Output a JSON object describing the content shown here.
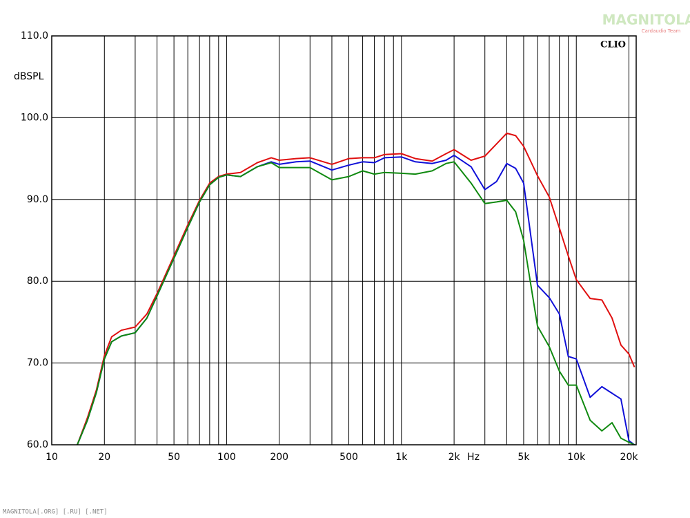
{
  "chart_data": {
    "type": "line",
    "y_label": "dBSPL",
    "x_unit": "Hz",
    "brand": "CLIO",
    "watermark": "MAGNITOLA",
    "watermark_sub": "Cardaudio Team",
    "footer": "MAGNITOLA[.ORG] [.RU] [.NET]",
    "log_x": true,
    "grid": true,
    "xlim": [
      10,
      22000
    ],
    "ylim": [
      60,
      110
    ],
    "xticks": [
      10,
      20,
      50,
      100,
      200,
      500,
      {
        "value": 1000,
        "label": "1k"
      },
      {
        "value": 2000,
        "label": "2k"
      },
      {
        "value": 5000,
        "label": "5k"
      },
      {
        "value": 10000,
        "label": "10k"
      },
      {
        "value": 20000,
        "label": "20k"
      }
    ],
    "xminor": [
      30,
      40,
      60,
      70,
      80,
      90,
      300,
      400,
      600,
      700,
      800,
      900,
      3000,
      4000,
      6000,
      7000,
      8000,
      9000
    ],
    "yticks": [
      {
        "value": 60,
        "label": "60.0"
      },
      {
        "value": 70,
        "label": "70.0"
      },
      {
        "value": 80,
        "label": "80.0"
      },
      {
        "value": 90,
        "label": "90.0"
      },
      {
        "value": 100,
        "label": "100.0"
      },
      {
        "value": 110,
        "label": "110.0"
      }
    ],
    "x": [
      14,
      16,
      18,
      20,
      22,
      25,
      30,
      35,
      40,
      50,
      60,
      70,
      80,
      90,
      100,
      120,
      150,
      180,
      200,
      250,
      300,
      400,
      500,
      600,
      700,
      800,
      1000,
      1200,
      1500,
      1800,
      2000,
      2500,
      3000,
      3500,
      4000,
      4500,
      5000,
      6000,
      7000,
      8000,
      9000,
      10000,
      12000,
      14000,
      16000,
      18000,
      20000,
      21500
    ],
    "series": [
      {
        "color": "#e01010",
        "values": [
          60.0,
          63.3,
          66.7,
          70.9,
          73.2,
          74.0,
          74.4,
          76.0,
          78.5,
          83.1,
          86.9,
          89.9,
          92.0,
          92.8,
          93.1,
          93.3,
          94.5,
          95.1,
          94.8,
          95.0,
          95.1,
          94.3,
          95.0,
          95.1,
          95.1,
          95.5,
          95.6,
          95.0,
          94.7,
          95.6,
          96.1,
          94.8,
          95.3,
          96.8,
          98.1,
          97.8,
          96.5,
          92.9,
          90.3,
          86.5,
          83.1,
          80.2,
          77.9,
          77.7,
          75.5,
          72.2,
          71.1,
          69.5
        ]
      },
      {
        "color": "#1010d8",
        "values": [
          60.0,
          63.0,
          66.4,
          70.5,
          72.6,
          73.3,
          73.7,
          75.5,
          78.2,
          82.8,
          86.6,
          89.7,
          91.8,
          92.7,
          93.0,
          92.8,
          94.0,
          94.6,
          94.3,
          94.6,
          94.7,
          93.6,
          94.2,
          94.6,
          94.5,
          95.1,
          95.2,
          94.6,
          94.4,
          94.8,
          95.4,
          94.0,
          91.2,
          92.2,
          94.4,
          93.8,
          92.0,
          79.5,
          78.0,
          76.0,
          70.8,
          70.5,
          65.8,
          67.1,
          66.3,
          65.6,
          60.5,
          60.0
        ]
      },
      {
        "color": "#108a10",
        "values": [
          60.0,
          63.0,
          66.4,
          70.5,
          72.6,
          73.3,
          73.7,
          75.5,
          78.2,
          82.8,
          86.6,
          89.7,
          91.8,
          92.7,
          93.0,
          92.8,
          94.0,
          94.5,
          93.9,
          93.9,
          93.9,
          92.4,
          92.8,
          93.5,
          93.1,
          93.3,
          93.2,
          93.1,
          93.5,
          94.4,
          94.6,
          92.0,
          89.5,
          89.7,
          89.9,
          88.5,
          85.0,
          74.5,
          72.0,
          69.0,
          67.3,
          67.3,
          63.0,
          61.7,
          62.7,
          60.8,
          60.3,
          60.0
        ]
      }
    ]
  }
}
